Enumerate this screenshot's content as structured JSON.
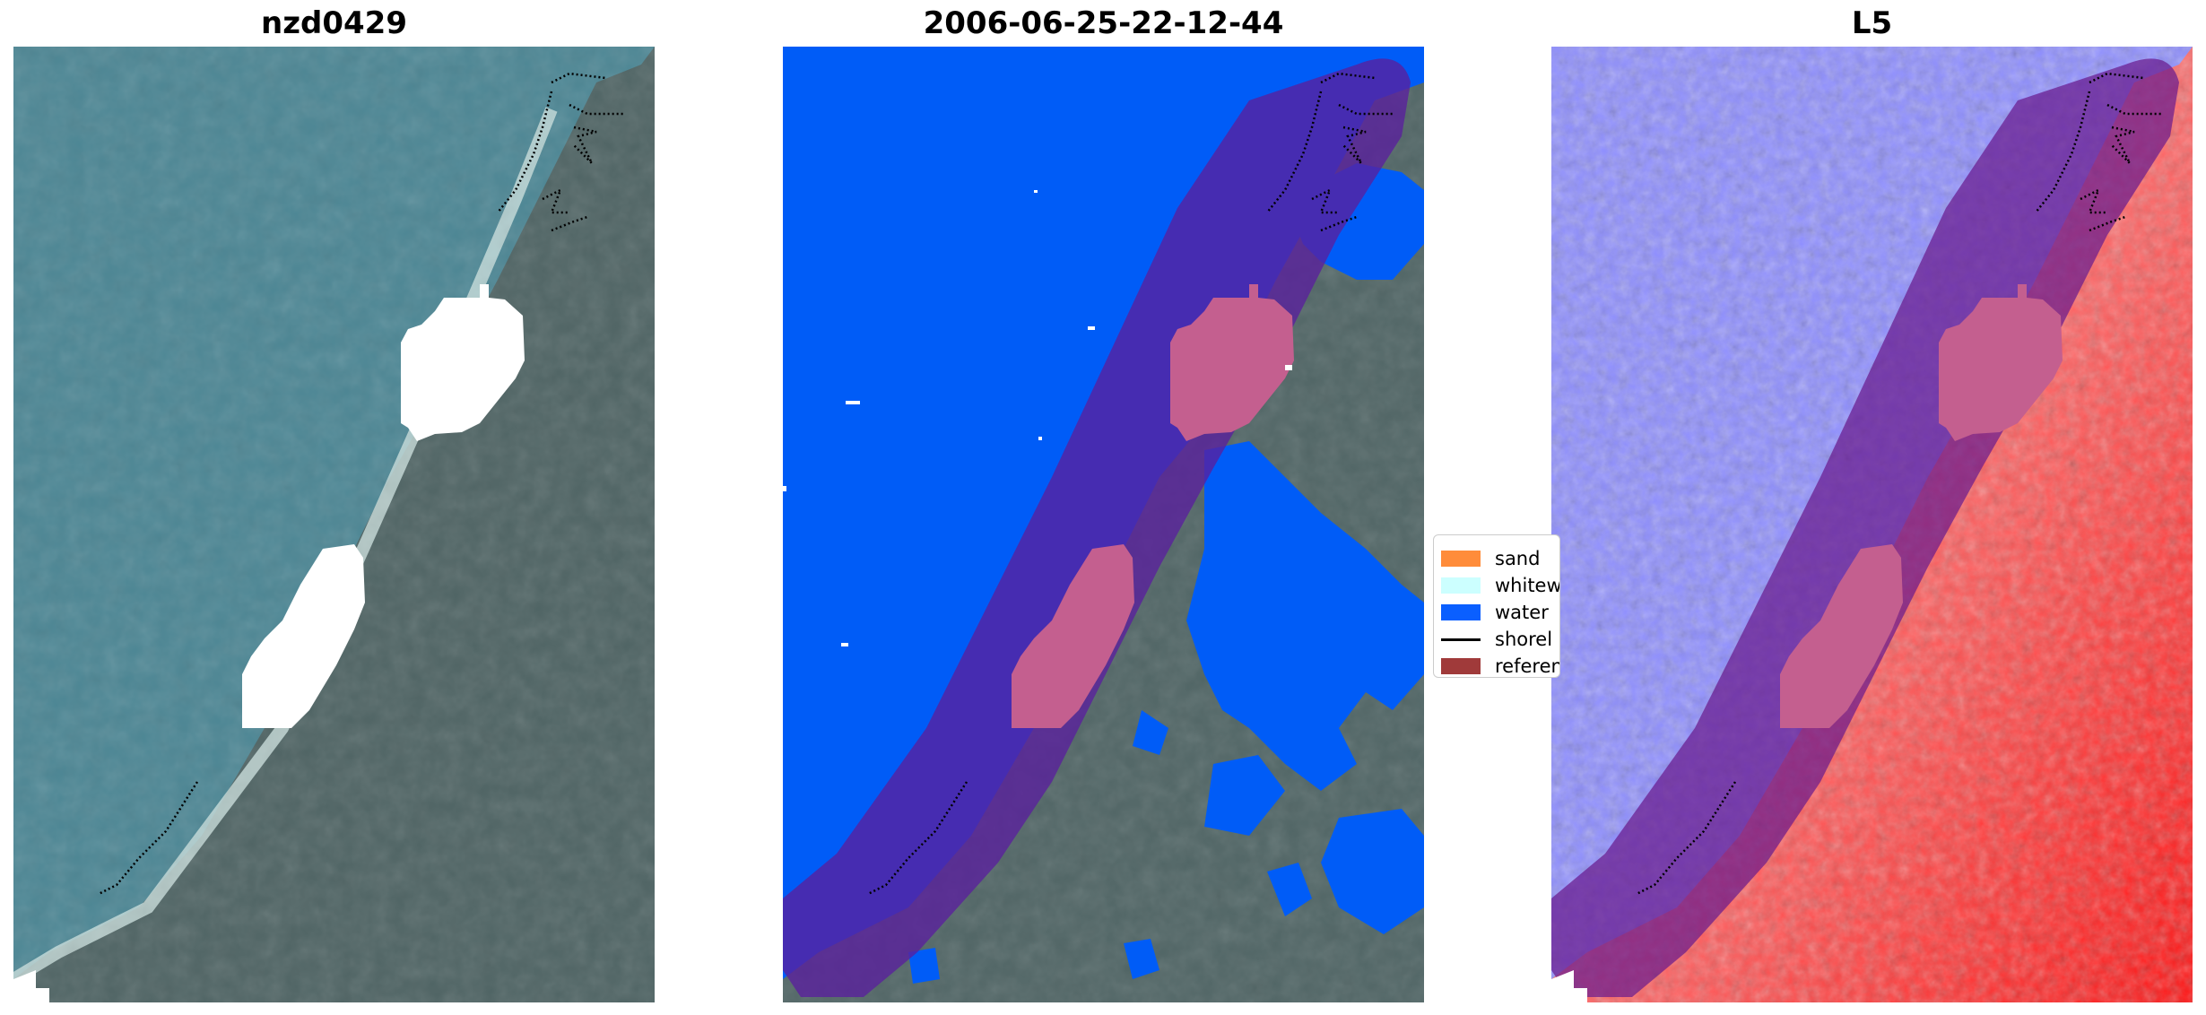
{
  "panels": [
    {
      "title": "nzd0429",
      "kind": "rgb-satellite"
    },
    {
      "title": "2006-06-25-22-12-44",
      "kind": "classification"
    },
    {
      "title": "L5",
      "kind": "index-map"
    }
  ],
  "legend": {
    "items": [
      {
        "label": "sand",
        "color": "#ff8c3a",
        "type": "patch"
      },
      {
        "label": "whitew",
        "color": "#ccffff",
        "type": "patch"
      },
      {
        "label": "water",
        "color": "#0a5fff",
        "type": "patch"
      },
      {
        "label": "shorel",
        "color": "#000000",
        "type": "line"
      },
      {
        "label": "referen",
        "color": "#a03a3a",
        "type": "patch"
      }
    ]
  },
  "colors": {
    "sea": "#4c8694",
    "land": "#4e6262",
    "water_class": "#005cf7",
    "buffer": "#5a1f9e",
    "cloud_mask": "#ffffff",
    "index_low": "#2a2aff",
    "index_high": "#ff1a1a"
  }
}
